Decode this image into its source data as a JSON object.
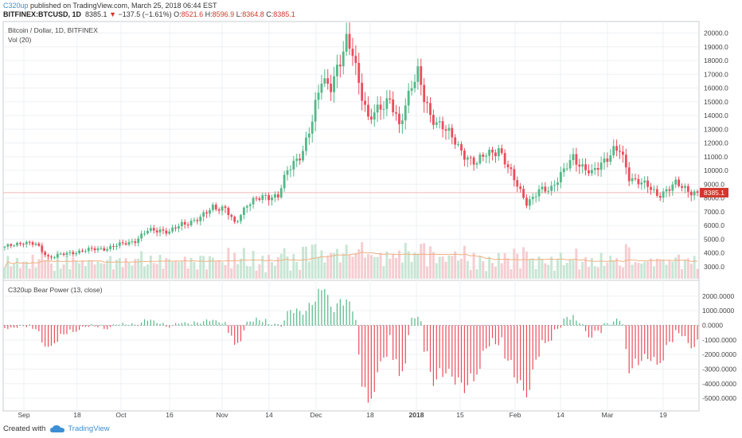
{
  "header": {
    "author": "C320up",
    "published": " published on TradingView.com, March 25, 2018 06:44 EST",
    "symbol": "BITFINEX:BTCUSD, 1D",
    "last": "8385.1",
    "change": "−137.5 (−1.61%)",
    "o_label": "O:",
    "o": "8521.6",
    "h_label": "H:",
    "h": "8596.9",
    "l_label": "L:",
    "l": "8364.8",
    "c_label": "C:",
    "c": "8385.1"
  },
  "footer": {
    "created_with": "Created with",
    "brand": "TradingView",
    "brand_icon": "tradingview-cloud-icon"
  },
  "colors": {
    "up": "#53b987",
    "down": "#eb4d5c",
    "vol_up": "#c8e6d4",
    "vol_down": "#f5cdd1",
    "vol_ma": "#f0b080",
    "price_line": "#f2b6b6",
    "price_tag": "#d2362c",
    "axis_text": "#444444",
    "grid": "#eef0f3"
  },
  "chart_data": [
    {
      "type": "candlestick",
      "title": "Bitcoin / Dollar, 1D, BITFINEX",
      "indicator_label": "Vol (20)",
      "y_axis_labels": [
        "20000.0",
        "19000.0",
        "18000.0",
        "17000.0",
        "16000.0",
        "15000.0",
        "14000.0",
        "13000.0",
        "12000.0",
        "11000.0",
        "10000.0",
        "9000.0",
        "8000.0",
        "7000.0",
        "6000.0",
        "5000.0",
        "4000.0",
        "3000.0"
      ],
      "x_axis_labels": [
        "Sep",
        "18",
        "Oct",
        "16",
        "Nov",
        "14",
        "Dec",
        "18",
        "2018",
        "15",
        "Feb",
        "14",
        "Mar",
        "19"
      ],
      "x_axis_bold": [
        "2018"
      ],
      "last_price": 8385.1,
      "last_price_label": "8385.1",
      "close_anchors": [
        {
          "day": 0,
          "close": 4400
        },
        {
          "day": 6,
          "close": 4800
        },
        {
          "day": 10,
          "close": 4600
        },
        {
          "day": 14,
          "close": 3700
        },
        {
          "day": 19,
          "close": 3900
        },
        {
          "day": 26,
          "close": 4200
        },
        {
          "day": 33,
          "close": 4350
        },
        {
          "day": 42,
          "close": 4900
        },
        {
          "day": 46,
          "close": 5600
        },
        {
          "day": 50,
          "close": 5700
        },
        {
          "day": 53,
          "close": 5500
        },
        {
          "day": 57,
          "close": 6100
        },
        {
          "day": 63,
          "close": 6500
        },
        {
          "day": 67,
          "close": 7400
        },
        {
          "day": 71,
          "close": 7200
        },
        {
          "day": 74,
          "close": 6100
        },
        {
          "day": 78,
          "close": 7600
        },
        {
          "day": 84,
          "close": 8100
        },
        {
          "day": 88,
          "close": 8200
        },
        {
          "day": 91,
          "close": 9900
        },
        {
          "day": 96,
          "close": 11500
        },
        {
          "day": 99,
          "close": 13500
        },
        {
          "day": 102,
          "close": 16700
        },
        {
          "day": 105,
          "close": 16300
        },
        {
          "day": 108,
          "close": 17700
        },
        {
          "day": 110,
          "close": 19300
        },
        {
          "day": 112,
          "close": 18900
        },
        {
          "day": 114,
          "close": 16500
        },
        {
          "day": 117,
          "close": 13500
        },
        {
          "day": 121,
          "close": 14800
        },
        {
          "day": 124,
          "close": 15200
        },
        {
          "day": 127,
          "close": 13000
        },
        {
          "day": 131,
          "close": 16500
        },
        {
          "day": 133,
          "close": 17200
        },
        {
          "day": 135,
          "close": 15100
        },
        {
          "day": 137,
          "close": 13800
        },
        {
          "day": 141,
          "close": 13400
        },
        {
          "day": 146,
          "close": 11600
        },
        {
          "day": 148,
          "close": 11200
        },
        {
          "day": 152,
          "close": 10500
        },
        {
          "day": 155,
          "close": 11200
        },
        {
          "day": 159,
          "close": 11600
        },
        {
          "day": 162,
          "close": 10100
        },
        {
          "day": 165,
          "close": 9000
        },
        {
          "day": 168,
          "close": 7700
        },
        {
          "day": 170,
          "close": 7900
        },
        {
          "day": 172,
          "close": 8500
        },
        {
          "day": 176,
          "close": 8800
        },
        {
          "day": 180,
          "close": 9900
        },
        {
          "day": 183,
          "close": 11000
        },
        {
          "day": 186,
          "close": 10300
        },
        {
          "day": 189,
          "close": 9700
        },
        {
          "day": 193,
          "close": 10800
        },
        {
          "day": 196,
          "close": 11500
        },
        {
          "day": 198,
          "close": 11400
        },
        {
          "day": 201,
          "close": 9500
        },
        {
          "day": 204,
          "close": 9300
        },
        {
          "day": 207,
          "close": 8800
        },
        {
          "day": 210,
          "close": 8200
        },
        {
          "day": 213,
          "close": 8600
        },
        {
          "day": 216,
          "close": 9000
        },
        {
          "day": 219,
          "close": 8700
        },
        {
          "day": 222,
          "close": 8400
        }
      ]
    },
    {
      "type": "bar",
      "title": "C320up Bear Power (13, close)",
      "y_axis_labels": [
        "2000.0000",
        "1000.0000",
        "0.0000",
        "-1000.0000",
        "-2000.0000",
        "-3000.0000",
        "-4000.0000",
        "-5000.0000"
      ],
      "description_of_values": "Bear Power = Low − EMA(13, close); green bars above zero, red bars below zero",
      "peak_positive": 2500,
      "peak_negative": -5300
    }
  ]
}
